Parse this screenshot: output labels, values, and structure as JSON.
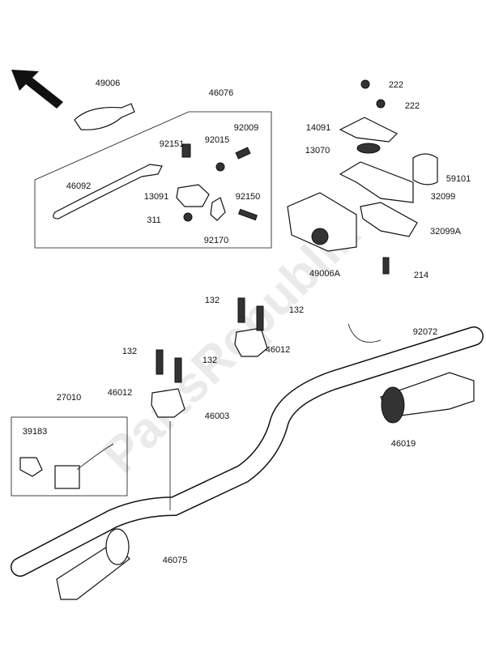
{
  "watermark": "PartsRepublik",
  "parts": [
    {
      "label": "49006"
    },
    {
      "label": "46076"
    },
    {
      "label": "92151"
    },
    {
      "label": "92015"
    },
    {
      "label": "92009"
    },
    {
      "label": "46092"
    },
    {
      "label": "13091"
    },
    {
      "label": "92150"
    },
    {
      "label": "311"
    },
    {
      "label": "92170"
    },
    {
      "label": "222"
    },
    {
      "label": "222"
    },
    {
      "label": "14091"
    },
    {
      "label": "13070"
    },
    {
      "label": "59101"
    },
    {
      "label": "32099"
    },
    {
      "label": "32099A"
    },
    {
      "label": "49006A"
    },
    {
      "label": "214"
    },
    {
      "label": "132"
    },
    {
      "label": "132"
    },
    {
      "label": "46012"
    },
    {
      "label": "92072"
    },
    {
      "label": "132"
    },
    {
      "label": "132"
    },
    {
      "label": "46012"
    },
    {
      "label": "27010"
    },
    {
      "label": "46003"
    },
    {
      "label": "39183"
    },
    {
      "label": "46019"
    },
    {
      "label": "46075"
    }
  ]
}
